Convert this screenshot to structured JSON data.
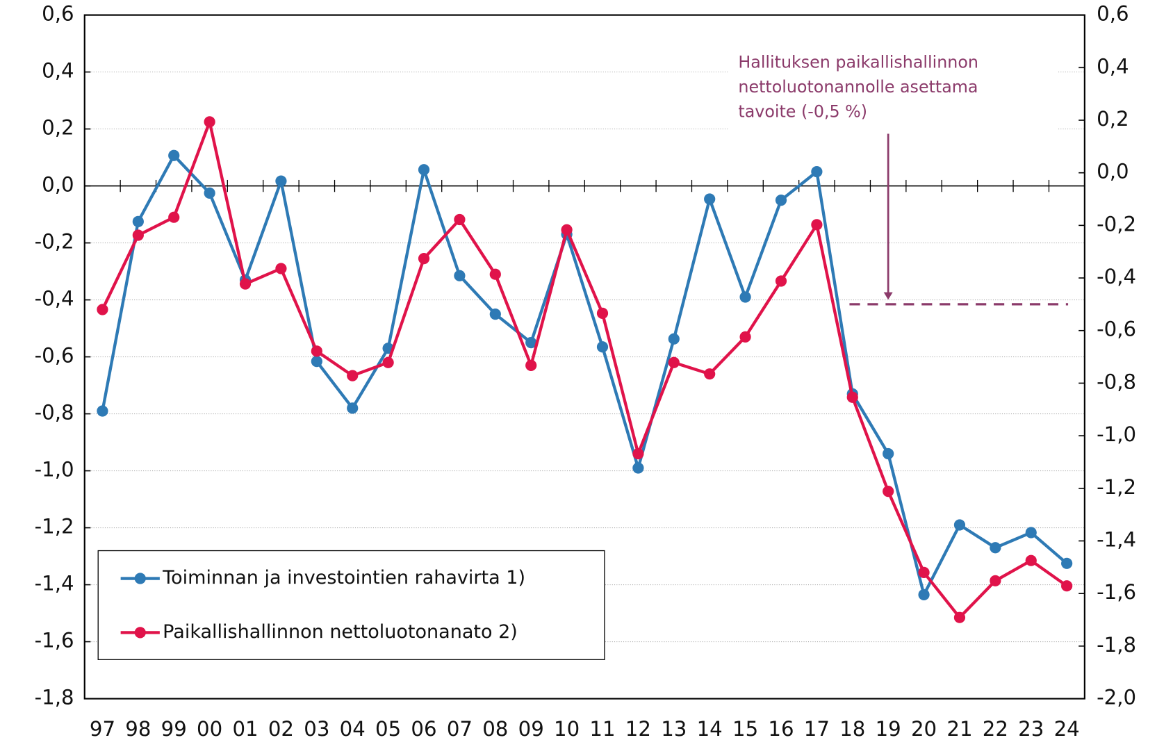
{
  "chart_data": {
    "type": "line",
    "categories": [
      "97",
      "98",
      "99",
      "00",
      "01",
      "02",
      "03",
      "04",
      "05",
      "06",
      "07",
      "08",
      "09",
      "10",
      "11",
      "12",
      "13",
      "14",
      "15",
      "16",
      "17",
      "18",
      "19",
      "20",
      "21",
      "22",
      "23",
      "24"
    ],
    "series": [
      {
        "name": "Toiminnan ja investointien rahavirta 1)",
        "color": "#2e7ab5",
        "values": [
          -0.79,
          -0.125,
          0.107,
          -0.025,
          -0.33,
          0.017,
          -0.616,
          -0.78,
          -0.57,
          0.057,
          -0.315,
          -0.45,
          -0.55,
          -0.17,
          -0.565,
          -0.99,
          -0.537,
          -0.046,
          -0.39,
          -0.05,
          0.05,
          -0.73,
          -0.94,
          -1.435,
          -1.19,
          -1.27,
          -1.217,
          -1.325
        ]
      },
      {
        "name": "Paikallishallinnon nettoluotonanato 2)",
        "color": "#e0134a",
        "values": [
          -0.434,
          -0.173,
          -0.11,
          0.225,
          -0.344,
          -0.29,
          -0.58,
          -0.666,
          -0.62,
          -0.255,
          -0.118,
          -0.31,
          -0.63,
          -0.154,
          -0.447,
          -0.94,
          -0.62,
          -0.66,
          -0.53,
          -0.334,
          -0.136,
          -0.742,
          -1.072,
          -1.357,
          -1.515,
          -1.386,
          -1.315,
          -1.404
        ]
      }
    ],
    "ylim": [
      -1.8,
      0.6
    ],
    "yticks": [
      {
        "value": 0.6,
        "label": "0,6"
      },
      {
        "value": 0.4,
        "label": "0,4"
      },
      {
        "value": 0.2,
        "label": "0,2"
      },
      {
        "value": 0.0,
        "label": "0,0"
      },
      {
        "value": -0.2,
        "label": "-0,2"
      },
      {
        "value": -0.4,
        "label": "-0,4"
      },
      {
        "value": -0.6,
        "label": "-0,6"
      },
      {
        "value": -0.8,
        "label": "-0,8"
      },
      {
        "value": -1.0,
        "label": "-1,0"
      },
      {
        "value": -1.2,
        "label": "-1,2"
      },
      {
        "value": -1.4,
        "label": "-1,4"
      },
      {
        "value": -1.6,
        "label": "-1,6"
      },
      {
        "value": -1.8,
        "label": "-1,8"
      }
    ],
    "y2lim": [
      -2.0,
      0.6
    ],
    "y2ticks": [
      {
        "value": 0.6,
        "label": "0,6"
      },
      {
        "value": 0.4,
        "label": "0,4"
      },
      {
        "value": 0.2,
        "label": "0,2"
      },
      {
        "value": 0.0,
        "label": "0,0"
      },
      {
        "value": -0.2,
        "label": "-0,2"
      },
      {
        "value": -0.4,
        "label": "-0,4"
      },
      {
        "value": -0.6,
        "label": "-0,6"
      },
      {
        "value": -0.8,
        "label": "-0,8"
      },
      {
        "value": -1.0,
        "label": "-1,0"
      },
      {
        "value": -1.2,
        "label": "-1,2"
      },
      {
        "value": -1.4,
        "label": "-1,4"
      },
      {
        "value": -1.6,
        "label": "-1,6"
      },
      {
        "value": -1.8,
        "label": "-1,8"
      },
      {
        "value": -2.0,
        "label": "-2,0"
      }
    ],
    "grid": true,
    "annotation": {
      "text": [
        "Hallituksen paikallishallinnon",
        "nettoluotonannolle asettama",
        "tavoite (-0,5 %)"
      ],
      "value": -0.5,
      "axis": "y2",
      "color": "#8b3a6a"
    }
  }
}
